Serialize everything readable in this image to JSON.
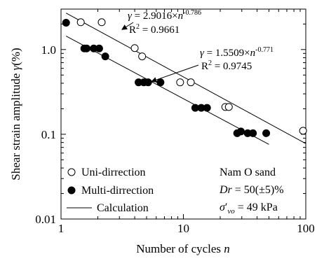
{
  "chart_data": {
    "type": "scatter",
    "xlabel": "Number of cycles",
    "xlabel_var": "n",
    "ylabel": "Shear strain amplitude",
    "ylabel_var": "γ",
    "ylabel_unit": "(%)",
    "x_scale": "log",
    "y_scale": "log",
    "xlim": [
      1,
      100
    ],
    "ylim": [
      0.01,
      3
    ],
    "x_ticks": [
      1,
      10,
      100
    ],
    "x_tick_labels": [
      "1",
      "10",
      "100"
    ],
    "y_ticks": [
      0.01,
      0.1,
      1
    ],
    "y_tick_labels": [
      "0.01",
      "0.1",
      "1.0"
    ],
    "grid": false,
    "legend": "bottom-left",
    "series": [
      {
        "name": "Uni-dirrection",
        "marker": "open-circle",
        "x": [
          1.45,
          2.15,
          4.0,
          4.6,
          9.4,
          11.5,
          22.0,
          23.5,
          95.0
        ],
        "y": [
          2.1,
          2.1,
          1.04,
          0.83,
          0.41,
          0.41,
          0.21,
          0.21,
          0.11
        ]
      },
      {
        "name": "Multi-dirrection",
        "marker": "filled-circle",
        "x": [
          1.1,
          1.55,
          1.62,
          1.85,
          2.05,
          2.3,
          4.3,
          4.75,
          5.15,
          6.5,
          12.5,
          14.0,
          15.6,
          27.5,
          29.5,
          33.5,
          37.0,
          47.5
        ],
        "y": [
          2.07,
          1.03,
          1.03,
          1.03,
          1.03,
          0.83,
          0.41,
          0.41,
          0.41,
          0.41,
          0.205,
          0.205,
          0.205,
          0.103,
          0.108,
          0.103,
          0.103,
          0.103
        ]
      },
      {
        "name": "Calculation",
        "marker": "line",
        "fits": [
          {
            "coef": 2.9016,
            "exp": -0.786,
            "x_range": [
              1.1,
              100
            ]
          },
          {
            "coef": 1.5509,
            "exp": -0.771,
            "x_range": [
              1.1,
              50
            ]
          }
        ]
      }
    ],
    "annotations": [
      {
        "id": "uni",
        "gamma_symbol": "γ",
        "equals": " = ",
        "coef": "2.9016",
        "times": "×",
        "n": "n",
        "exp": "-0.786",
        "r2_label": "R",
        "r2_sup": "2",
        "r2_value": " = 0.9661",
        "arrow_to": [
          3.15,
          1.72
        ]
      },
      {
        "id": "multi",
        "gamma_symbol": "γ",
        "equals": " = ",
        "coef": "1.5509",
        "times": "×",
        "n": "n",
        "exp": "-0.771",
        "r2_label": "R",
        "r2_sup": "2",
        "r2_value": " = 0.9745",
        "arrow_to": [
          5.5,
          0.42
        ]
      }
    ],
    "info_box": {
      "material": "Nam O sand",
      "dr_var": "Dr",
      "dr_value": " = 50(±5)%",
      "sigma_symbol": "σ",
      "sigma_prime": "′",
      "sigma_sub": "vo",
      "sigma_value": " = 49 kPa"
    }
  }
}
